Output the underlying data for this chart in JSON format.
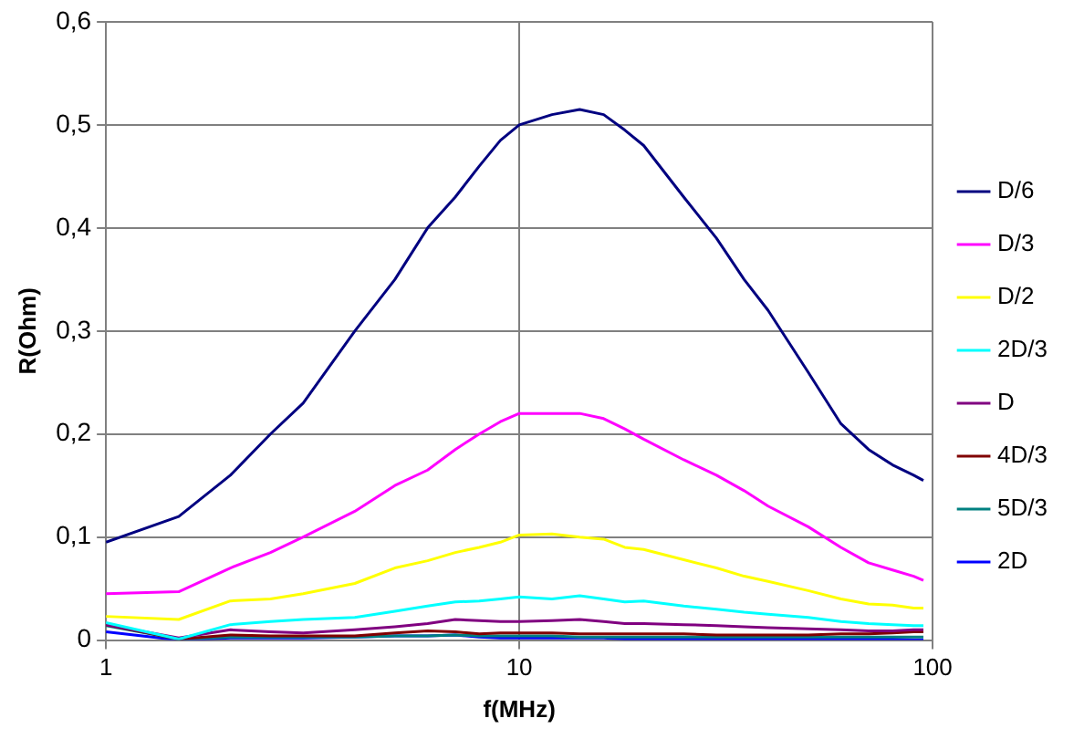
{
  "chart_data": {
    "type": "line",
    "xlabel": "f(MHz)",
    "ylabel": "R(Ohm)",
    "log": "x",
    "grid": true,
    "legend": "right",
    "marker": "none",
    "line_style": "solid",
    "x": [
      1,
      1.5,
      2,
      2.5,
      3,
      4,
      5,
      6,
      7,
      8,
      9,
      10,
      12,
      14,
      16,
      18,
      20,
      25,
      30,
      35,
      40,
      50,
      60,
      70,
      80,
      90,
      95
    ],
    "xlim": [
      1,
      100
    ],
    "xticks": [
      1,
      10,
      100
    ],
    "ylim": [
      0,
      0.6
    ],
    "yticks": [
      0,
      {
        "value": 0.1,
        "label": "0,1"
      },
      {
        "value": 0.2,
        "label": "0,2"
      },
      {
        "value": 0.3,
        "label": "0,3"
      },
      {
        "value": 0.4,
        "label": "0,4"
      },
      {
        "value": 0.5,
        "label": "0,5"
      },
      {
        "value": 0.6,
        "label": "0,6"
      }
    ],
    "series": [
      {
        "name": "D/6",
        "color": "#000080",
        "values": [
          0.095,
          0.12,
          0.16,
          0.2,
          0.23,
          0.3,
          0.35,
          0.4,
          0.43,
          0.46,
          0.485,
          0.5,
          0.51,
          0.515,
          0.51,
          0.495,
          0.48,
          0.43,
          0.39,
          0.35,
          0.32,
          0.26,
          0.21,
          0.185,
          0.17,
          0.16,
          0.155
        ]
      },
      {
        "name": "D/3",
        "color": "#ff00ff",
        "values": [
          0.045,
          0.047,
          0.07,
          0.085,
          0.1,
          0.125,
          0.15,
          0.165,
          0.185,
          0.2,
          0.212,
          0.22,
          0.22,
          0.22,
          0.215,
          0.205,
          0.195,
          0.175,
          0.16,
          0.145,
          0.13,
          0.11,
          0.09,
          0.075,
          0.068,
          0.062,
          0.058
        ]
      },
      {
        "name": "D/2",
        "color": "#ffff00",
        "values": [
          0.023,
          0.02,
          0.038,
          0.04,
          0.045,
          0.055,
          0.07,
          0.077,
          0.085,
          0.09,
          0.095,
          0.102,
          0.103,
          0.1,
          0.098,
          0.09,
          0.088,
          0.078,
          0.07,
          0.062,
          0.057,
          0.048,
          0.04,
          0.035,
          0.034,
          0.031,
          0.031
        ]
      },
      {
        "name": "2D/3",
        "color": "#00ffff",
        "values": [
          0.017,
          0.001,
          0.015,
          0.018,
          0.02,
          0.022,
          0.028,
          0.033,
          0.037,
          0.038,
          0.04,
          0.042,
          0.04,
          0.043,
          0.04,
          0.037,
          0.038,
          0.033,
          0.03,
          0.027,
          0.025,
          0.022,
          0.018,
          0.016,
          0.015,
          0.014,
          0.014
        ]
      },
      {
        "name": "D",
        "color": "#800080",
        "values": [
          0.015,
          0.002,
          0.01,
          0.008,
          0.007,
          0.01,
          0.013,
          0.016,
          0.02,
          0.019,
          0.018,
          0.018,
          0.019,
          0.02,
          0.018,
          0.016,
          0.016,
          0.015,
          0.014,
          0.013,
          0.012,
          0.011,
          0.01,
          0.009,
          0.009,
          0.01,
          0.01
        ]
      },
      {
        "name": "4D/3",
        "color": "#800000",
        "values": [
          0.015,
          0.001,
          0.005,
          0.004,
          0.004,
          0.004,
          0.007,
          0.009,
          0.008,
          0.006,
          0.007,
          0.007,
          0.007,
          0.006,
          0.006,
          0.006,
          0.006,
          0.006,
          0.005,
          0.005,
          0.005,
          0.005,
          0.006,
          0.006,
          0.007,
          0.008,
          0.008
        ]
      },
      {
        "name": "5D/3",
        "color": "#008080",
        "values": [
          0.014,
          0.001,
          0.003,
          0.003,
          0.003,
          0.003,
          0.004,
          0.004,
          0.005,
          0.004,
          0.004,
          0.004,
          0.004,
          0.003,
          0.003,
          0.003,
          0.003,
          0.003,
          0.003,
          0.003,
          0.003,
          0.003,
          0.003,
          0.003,
          0.003,
          0.003,
          0.003
        ]
      },
      {
        "name": "2D",
        "color": "#0000ff",
        "values": [
          0.008,
          0,
          0.002,
          0.002,
          0.002,
          0.003,
          0.004,
          0.004,
          0.005,
          0.003,
          0.002,
          0.002,
          0.002,
          0.002,
          0.002,
          0.001,
          0.001,
          0.001,
          0.001,
          0.001,
          0.001,
          0.001,
          0.001,
          0.001,
          0.001,
          0,
          0
        ]
      }
    ]
  }
}
